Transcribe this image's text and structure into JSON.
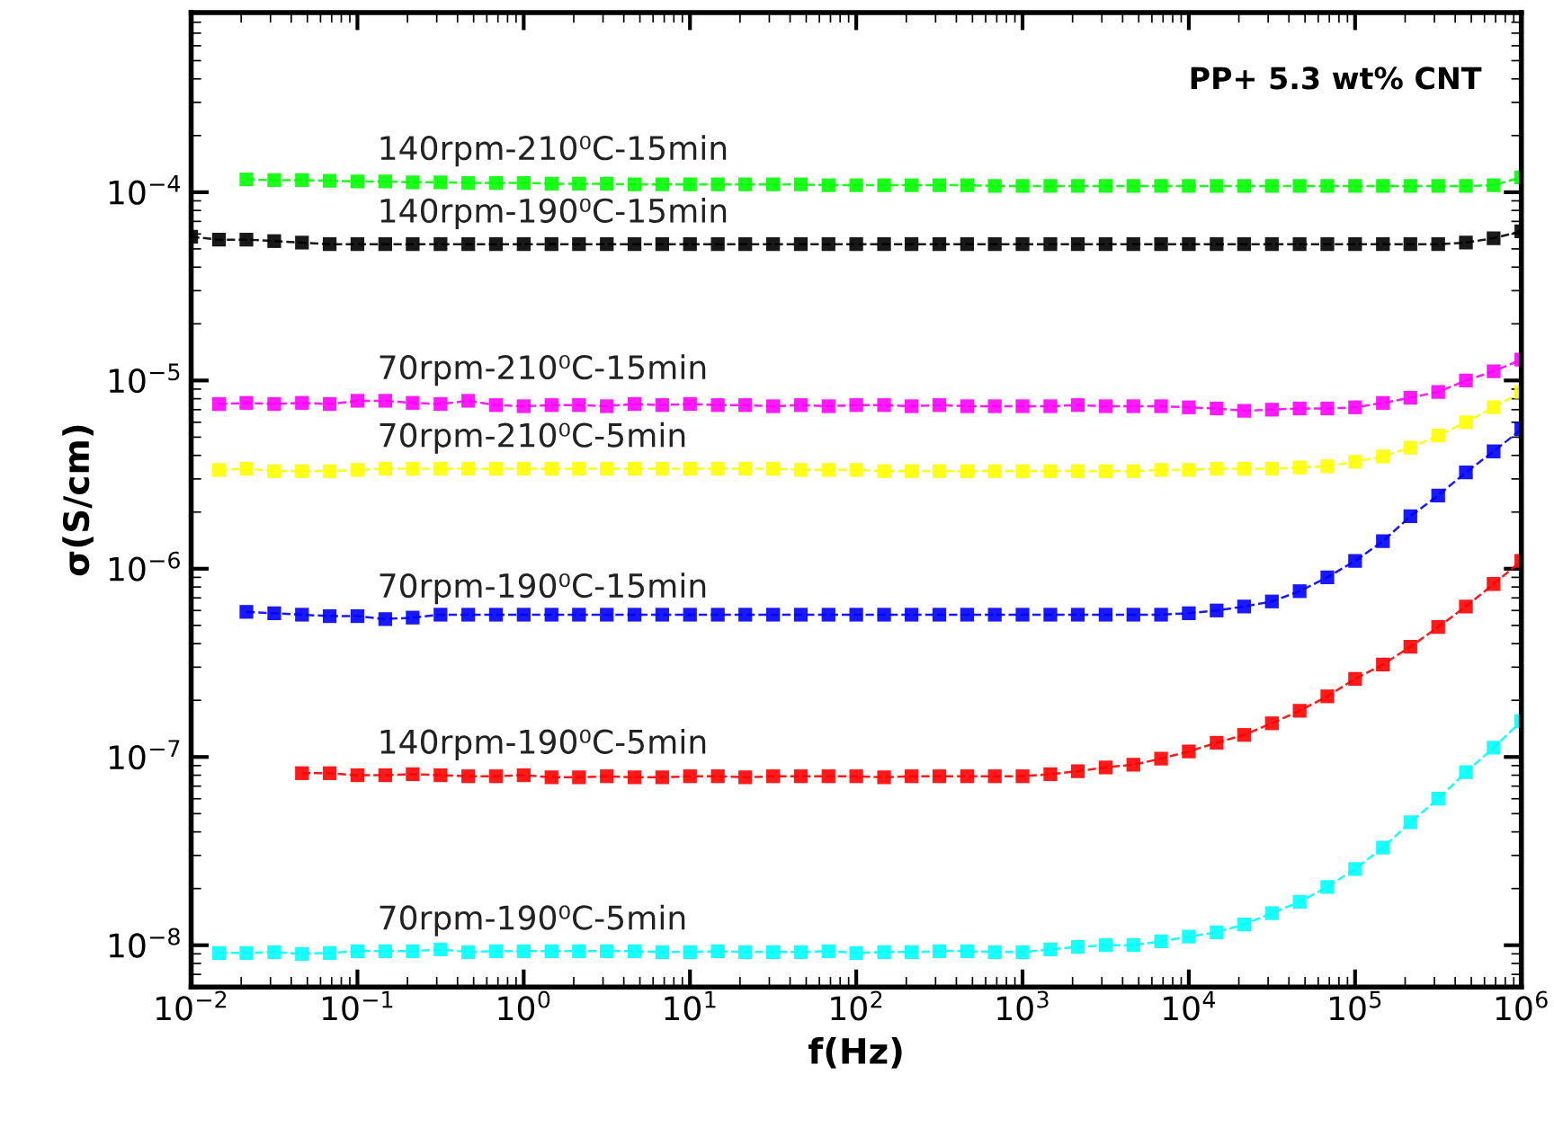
{
  "chart_data": {
    "type": "line",
    "xlabel": "f(Hz)",
    "ylabel": "σ(S/cm)",
    "log": "xy",
    "grid": false,
    "legend": false,
    "marker": "square",
    "line_style": "dashed",
    "xlim": [
      0.01,
      1000000
    ],
    "ylim": [
      6e-09,
      0.0009
    ],
    "xticks": [
      {
        "value": 0.01,
        "label": "10$^{−2}$"
      },
      {
        "value": 0.1,
        "label": "10$^{−1}$"
      },
      {
        "value": 1,
        "label": "10$^{0}$"
      },
      {
        "value": 10,
        "label": "10$^{1}$"
      },
      {
        "value": 100,
        "label": "10$^{2}$"
      },
      {
        "value": 1000,
        "label": "10$^{3}$"
      },
      {
        "value": 10000,
        "label": "10$^{4}$"
      },
      {
        "value": 100000,
        "label": "10$^{5}$"
      },
      {
        "value": 1000000,
        "label": "10$^{6}$"
      }
    ],
    "yticks": [
      {
        "value": 1e-08,
        "label": "10$^{−8}$"
      },
      {
        "value": 1e-07,
        "label": "10$^{−7}$"
      },
      {
        "value": 1e-06,
        "label": "10$^{−6}$"
      },
      {
        "value": 1e-05,
        "label": "10$^{−5}$"
      },
      {
        "value": 0.0001,
        "label": "10$^{−4}$"
      }
    ],
    "annotations": [
      "PP+ 5.3 wt% CNT"
    ],
    "series": [
      {
        "name": "140rpm-210⁰C-15min",
        "color": "#00ff00",
        "x": [
          0.0215,
          0.0316,
          0.0464,
          0.0681,
          0.1,
          0.147,
          0.215,
          0.316,
          0.464,
          0.681,
          1,
          1.47,
          2.15,
          3.16,
          4.64,
          6.81,
          10,
          14.7,
          21.5,
          31.6,
          46.4,
          68.1,
          100,
          147,
          215,
          316,
          464,
          681,
          1000,
          1470,
          2150,
          3160,
          4640,
          6810,
          10000,
          14700,
          21500,
          31600,
          46400,
          68100,
          100000,
          147000,
          215000,
          316000,
          464000,
          681000,
          1000000
        ],
        "values": [
          0.000117,
          0.000116,
          0.000116,
          0.000115,
          0.000114,
          0.000114,
          0.000113,
          0.000113,
          0.000112,
          0.000112,
          0.000112,
          0.000111,
          0.000111,
          0.000111,
          0.00011,
          0.00011,
          0.00011,
          0.00011,
          0.00011,
          0.00011,
          0.00011,
          0.000109,
          0.000109,
          0.000109,
          0.000109,
          0.000109,
          0.000109,
          0.000108,
          0.000108,
          0.000108,
          0.000108,
          0.000108,
          0.000108,
          0.000108,
          0.000108,
          0.000108,
          0.000108,
          0.000108,
          0.000108,
          0.000108,
          0.000108,
          0.000108,
          0.000108,
          0.000108,
          0.000108,
          0.000109,
          0.00012
        ]
      },
      {
        "name": "140rpm-190⁰C-15min",
        "color": "#000000",
        "x": [
          0.01,
          0.0147,
          0.0215,
          0.0316,
          0.0464,
          0.0681,
          0.1,
          0.147,
          0.215,
          0.316,
          0.464,
          0.681,
          1,
          1.47,
          2.15,
          3.16,
          4.64,
          6.81,
          10,
          14.7,
          21.5,
          31.6,
          46.4,
          68.1,
          100,
          147,
          215,
          316,
          464,
          681,
          1000,
          1470,
          2150,
          3160,
          4640,
          6810,
          10000,
          14700,
          21500,
          31600,
          46400,
          68100,
          100000,
          147000,
          215000,
          316000,
          464000,
          681000,
          1000000
        ],
        "values": [
          5.8e-05,
          5.6e-05,
          5.6e-05,
          5.5e-05,
          5.4e-05,
          5.3e-05,
          5.3e-05,
          5.3e-05,
          5.3e-05,
          5.3e-05,
          5.3e-05,
          5.3e-05,
          5.3e-05,
          5.3e-05,
          5.3e-05,
          5.3e-05,
          5.3e-05,
          5.3e-05,
          5.3e-05,
          5.3e-05,
          5.3e-05,
          5.3e-05,
          5.3e-05,
          5.3e-05,
          5.3e-05,
          5.3e-05,
          5.3e-05,
          5.3e-05,
          5.3e-05,
          5.3e-05,
          5.3e-05,
          5.3e-05,
          5.3e-05,
          5.3e-05,
          5.3e-05,
          5.3e-05,
          5.3e-05,
          5.3e-05,
          5.3e-05,
          5.3e-05,
          5.3e-05,
          5.3e-05,
          5.3e-05,
          5.3e-05,
          5.3e-05,
          5.3e-05,
          5.4e-05,
          5.7e-05,
          6.2e-05
        ]
      },
      {
        "name": "70rpm-210⁰C-15min",
        "color": "#ff00ff",
        "x": [
          0.0147,
          0.0215,
          0.0316,
          0.0464,
          0.0681,
          0.1,
          0.147,
          0.215,
          0.316,
          0.464,
          0.681,
          1,
          1.47,
          2.15,
          3.16,
          4.64,
          6.81,
          10,
          14.7,
          21.5,
          31.6,
          46.4,
          68.1,
          100,
          147,
          215,
          316,
          464,
          681,
          1000,
          1470,
          2150,
          3160,
          4640,
          6810,
          10000,
          14700,
          21500,
          31600,
          46400,
          68100,
          100000,
          147000,
          215000,
          316000,
          464000,
          681000,
          1000000
        ],
        "values": [
          7.5e-06,
          7.6e-06,
          7.5e-06,
          7.6e-06,
          7.5e-06,
          7.8e-06,
          7.8e-06,
          7.6e-06,
          7.5e-06,
          7.8e-06,
          7.4e-06,
          7.3e-06,
          7.4e-06,
          7.4e-06,
          7.3e-06,
          7.5e-06,
          7.4e-06,
          7.5e-06,
          7.4e-06,
          7.4e-06,
          7.3e-06,
          7.4e-06,
          7.3e-06,
          7.4e-06,
          7.4e-06,
          7.3e-06,
          7.4e-06,
          7.3e-06,
          7.3e-06,
          7.3e-06,
          7.3e-06,
          7.4e-06,
          7.3e-06,
          7.3e-06,
          7.3e-06,
          7.2e-06,
          7.1e-06,
          6.9e-06,
          7e-06,
          7.1e-06,
          7.1e-06,
          7.2e-06,
          7.6e-06,
          8.1e-06,
          8.7e-06,
          1e-05,
          1.12e-05,
          1.29e-05
        ]
      },
      {
        "name": "70rpm-210⁰C-5min",
        "color": "#ffff00",
        "x": [
          0.0147,
          0.0215,
          0.0316,
          0.0464,
          0.0681,
          0.1,
          0.147,
          0.215,
          0.316,
          0.464,
          0.681,
          1,
          1.47,
          2.15,
          3.16,
          4.64,
          6.81,
          10,
          14.7,
          21.5,
          31.6,
          46.4,
          68.1,
          100,
          147,
          215,
          316,
          464,
          681,
          1000,
          1470,
          2150,
          3160,
          4640,
          6810,
          10000,
          14700,
          21500,
          31600,
          46400,
          68100,
          100000,
          147000,
          215000,
          316000,
          464000,
          681000,
          1000000
        ],
        "values": [
          3.35e-06,
          3.4e-06,
          3.3e-06,
          3.3e-06,
          3.3e-06,
          3.35e-06,
          3.4e-06,
          3.4e-06,
          3.4e-06,
          3.4e-06,
          3.4e-06,
          3.4e-06,
          3.4e-06,
          3.4e-06,
          3.4e-06,
          3.4e-06,
          3.4e-06,
          3.4e-06,
          3.4e-06,
          3.4e-06,
          3.4e-06,
          3.35e-06,
          3.35e-06,
          3.35e-06,
          3.3e-06,
          3.3e-06,
          3.3e-06,
          3.3e-06,
          3.3e-06,
          3.3e-06,
          3.3e-06,
          3.3e-06,
          3.3e-06,
          3.3e-06,
          3.35e-06,
          3.35e-06,
          3.4e-06,
          3.4e-06,
          3.4e-06,
          3.45e-06,
          3.5e-06,
          3.7e-06,
          3.95e-06,
          4.4e-06,
          5.1e-06,
          6e-06,
          7.2e-06,
          8.7e-06
        ]
      },
      {
        "name": "70rpm-190⁰C-15min",
        "color": "#0000ff",
        "x": [
          0.0215,
          0.0316,
          0.0464,
          0.0681,
          0.1,
          0.147,
          0.215,
          0.316,
          0.464,
          0.681,
          1,
          1.47,
          2.15,
          3.16,
          4.64,
          6.81,
          10,
          14.7,
          21.5,
          31.6,
          46.4,
          68.1,
          100,
          147,
          215,
          316,
          464,
          681,
          1000,
          1470,
          2150,
          3160,
          4640,
          6810,
          10000,
          14700,
          21500,
          31600,
          46400,
          68100,
          100000,
          147000,
          215000,
          316000,
          464000,
          681000,
          1000000
        ],
        "values": [
          5.9e-07,
          5.8e-07,
          5.7e-07,
          5.6e-07,
          5.6e-07,
          5.4e-07,
          5.5e-07,
          5.7e-07,
          5.7e-07,
          5.7e-07,
          5.7e-07,
          5.7e-07,
          5.7e-07,
          5.7e-07,
          5.7e-07,
          5.7e-07,
          5.7e-07,
          5.7e-07,
          5.7e-07,
          5.7e-07,
          5.7e-07,
          5.7e-07,
          5.7e-07,
          5.7e-07,
          5.7e-07,
          5.7e-07,
          5.7e-07,
          5.7e-07,
          5.7e-07,
          5.7e-07,
          5.7e-07,
          5.7e-07,
          5.7e-07,
          5.7e-07,
          5.8e-07,
          6e-07,
          6.3e-07,
          6.7e-07,
          7.6e-07,
          9e-07,
          1.1e-06,
          1.4e-06,
          1.9e-06,
          2.45e-06,
          3.25e-06,
          4.2e-06,
          5.5e-06
        ]
      },
      {
        "name": "140rpm-190⁰C-5min",
        "color": "#ff0000",
        "x": [
          0.0464,
          0.0681,
          0.1,
          0.147,
          0.215,
          0.316,
          0.464,
          0.681,
          1,
          1.47,
          2.15,
          3.16,
          4.64,
          6.81,
          10,
          14.7,
          21.5,
          31.6,
          46.4,
          68.1,
          100,
          147,
          215,
          316,
          464,
          681,
          1000,
          1470,
          2150,
          3160,
          4640,
          6810,
          10000,
          14700,
          21500,
          31600,
          46400,
          68100,
          100000,
          147000,
          215000,
          316000,
          464000,
          681000,
          1000000
        ],
        "values": [
          8.2e-08,
          8.2e-08,
          8e-08,
          8e-08,
          8.1e-08,
          8e-08,
          7.9e-08,
          7.9e-08,
          8e-08,
          7.8e-08,
          7.8e-08,
          7.9e-08,
          7.8e-08,
          7.8e-08,
          7.9e-08,
          7.9e-08,
          7.8e-08,
          7.9e-08,
          7.9e-08,
          7.9e-08,
          7.9e-08,
          7.8e-08,
          7.9e-08,
          7.9e-08,
          7.9e-08,
          7.9e-08,
          7.9e-08,
          8.1e-08,
          8.4e-08,
          8.8e-08,
          9.1e-08,
          9.8e-08,
          1.07e-07,
          1.19e-07,
          1.31e-07,
          1.51e-07,
          1.76e-07,
          2.1e-07,
          2.6e-07,
          3.1e-07,
          3.85e-07,
          4.9e-07,
          6.3e-07,
          8.3e-07,
          1.1e-06
        ]
      },
      {
        "name": "70rpm-190⁰C-5min",
        "color": "#00ffff",
        "x": [
          0.0147,
          0.0215,
          0.0316,
          0.0464,
          0.0681,
          0.1,
          0.147,
          0.215,
          0.316,
          0.464,
          0.681,
          1,
          1.47,
          2.15,
          3.16,
          4.64,
          6.81,
          10,
          14.7,
          21.5,
          31.6,
          46.4,
          68.1,
          100,
          147,
          215,
          316,
          464,
          681,
          1000,
          1470,
          2150,
          3160,
          4640,
          6810,
          10000,
          14700,
          21500,
          31600,
          46400,
          68100,
          100000,
          147000,
          215000,
          316000,
          464000,
          681000,
          1000000
        ],
        "values": [
          9.1e-09,
          9.1e-09,
          9.2e-09,
          9e-09,
          9.1e-09,
          9.3e-09,
          9.3e-09,
          9.3e-09,
          9.5e-09,
          9.2e-09,
          9.3e-09,
          9.3e-09,
          9.3e-09,
          9.3e-09,
          9.3e-09,
          9.3e-09,
          9.2e-09,
          9.2e-09,
          9.3e-09,
          9.2e-09,
          9.2e-09,
          9.2e-09,
          9.3e-09,
          9.1e-09,
          9.2e-09,
          9.2e-09,
          9.3e-09,
          9.3e-09,
          9.2e-09,
          9.2e-09,
          9.5e-09,
          9.8e-09,
          1e-08,
          1e-08,
          1.05e-08,
          1.11e-08,
          1.17e-08,
          1.29e-08,
          1.48e-08,
          1.7e-08,
          2.04e-08,
          2.54e-08,
          3.3e-08,
          4.5e-08,
          6e-08,
          8.3e-08,
          1.12e-07,
          1.55e-07
        ]
      }
    ]
  }
}
